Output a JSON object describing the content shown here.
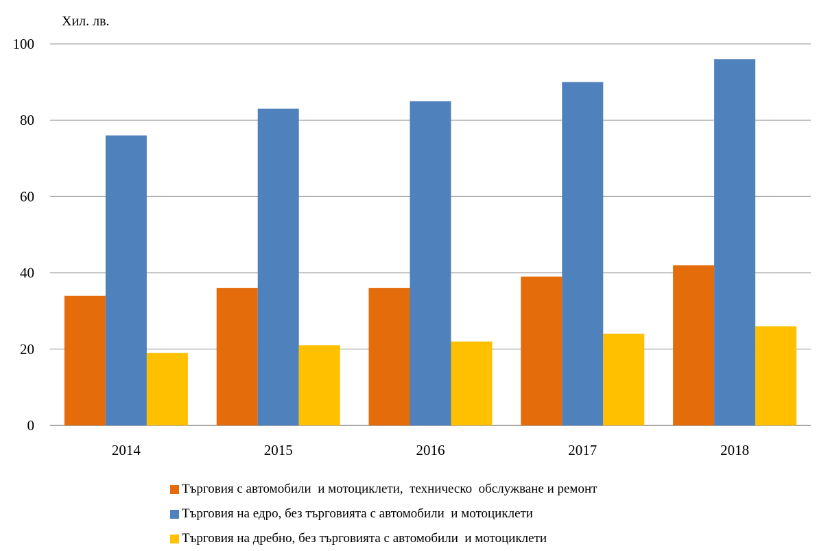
{
  "chart_data": {
    "type": "bar",
    "ylabel": "Хил. лв.",
    "ylim": [
      0,
      100
    ],
    "yticks": [
      0,
      20,
      40,
      60,
      80,
      100
    ],
    "grid": true,
    "legend_position": "bottom",
    "categories": [
      "2014",
      "2015",
      "2016",
      "2017",
      "2018"
    ],
    "series": [
      {
        "name": "Търговия с автомобили  и мотоциклети,  техническо  обслужване и ремонт",
        "color": "#E46C0A",
        "values": [
          34,
          36,
          36,
          39,
          42
        ]
      },
      {
        "name": "Търговия на едро, без търговията с автомобили  и мотоциклети",
        "color": "#4F81BD",
        "values": [
          76,
          83,
          85,
          90,
          96
        ]
      },
      {
        "name": "Търговия на дребно, без търговията с автомобили  и мотоциклети",
        "color": "#FFC000",
        "values": [
          19,
          21,
          22,
          24,
          26
        ]
      }
    ]
  }
}
